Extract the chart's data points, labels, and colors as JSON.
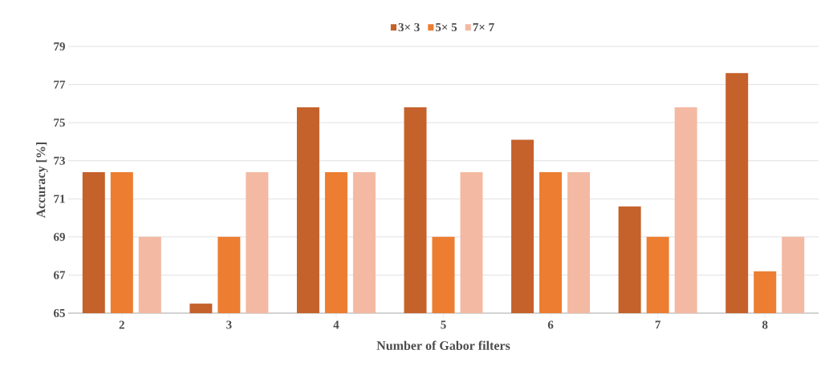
{
  "chart_data": {
    "type": "bar",
    "xlabel": "Number of Gabor filters",
    "ylabel": "Accuracy [%]",
    "categories": [
      "2",
      "3",
      "4",
      "5",
      "6",
      "7",
      "8"
    ],
    "series": [
      {
        "name": "3× 3",
        "color": "#c5612b",
        "values": [
          72.4,
          65.5,
          75.8,
          75.8,
          74.1,
          70.6,
          77.6
        ]
      },
      {
        "name": "5× 5",
        "color": "#ed7d31",
        "values": [
          72.4,
          69,
          72.4,
          69,
          72.4,
          69,
          67.2
        ]
      },
      {
        "name": "7× 7",
        "color": "#f4b9a2",
        "values": [
          69,
          72.4,
          72.4,
          72.4,
          72.4,
          75.8,
          69
        ]
      }
    ],
    "ylim": [
      65,
      79
    ],
    "yticks": [
      65,
      67,
      69,
      71,
      73,
      75,
      77,
      79
    ],
    "grid": "y",
    "legend": "top"
  }
}
